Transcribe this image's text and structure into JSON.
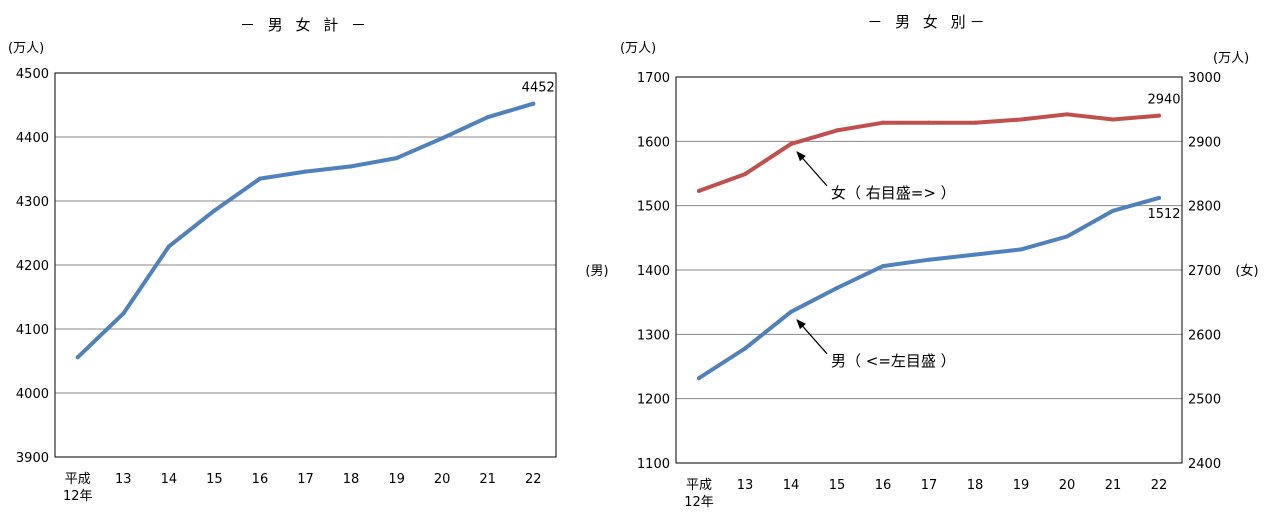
{
  "chart_data": [
    {
      "type": "line",
      "title": "－ 男 女 計 －",
      "unit_label": "(万人)",
      "categories": [
        "平成\n12年",
        "13",
        "14",
        "15",
        "16",
        "17",
        "18",
        "19",
        "20",
        "21",
        "22"
      ],
      "ylim": [
        3900,
        4500
      ],
      "yticks": [
        3900,
        4000,
        4100,
        4200,
        4300,
        4400,
        4500
      ],
      "grid": true,
      "series": [
        {
          "values": [
            4056,
            4124,
            4229,
            4285,
            4335,
            4346,
            4354,
            4367,
            4398,
            4431,
            4452
          ],
          "color": "#4f81bd"
        }
      ],
      "data_labels": [
        {
          "series": 0,
          "index": 10,
          "text": "4452"
        }
      ]
    },
    {
      "type": "line",
      "title": "－ 男 女 別－",
      "unit_label_left": "(万人)",
      "unit_label_right": "(万人)",
      "categories": [
        "平成\n12年",
        "13",
        "14",
        "15",
        "16",
        "17",
        "18",
        "19",
        "20",
        "21",
        "22"
      ],
      "ylim_left": [
        1100,
        1700
      ],
      "yticks_left": [
        1100,
        1200,
        1300,
        1400,
        1500,
        1600,
        1700
      ],
      "ylim_right": [
        2400,
        3000
      ],
      "yticks_right": [
        2400,
        2500,
        2600,
        2700,
        2800,
        2900,
        3000
      ],
      "ylabel_left": "(男)",
      "ylabel_right": "(女)",
      "grid": true,
      "series": [
        {
          "axis": "left",
          "values": [
            1232,
            1278,
            1335,
            1372,
            1406,
            1416,
            1424,
            1432,
            1452,
            1492,
            1512
          ],
          "color": "#4f81bd"
        },
        {
          "axis": "right",
          "values": [
            2823,
            2849,
            2896,
            2917,
            2929,
            2929,
            2929,
            2934,
            2942,
            2934,
            2940
          ],
          "color": "#c0504d"
        }
      ],
      "data_labels": [
        {
          "series": 1,
          "index": 10,
          "text": "2940"
        },
        {
          "series": 0,
          "index": 10,
          "text": "1512"
        }
      ],
      "annotations": [
        {
          "series": 1,
          "index": 2,
          "text": "女（ 右目盛=> ）"
        },
        {
          "series": 0,
          "index": 2,
          "text": "男（ <=左目盛 ）"
        }
      ]
    }
  ]
}
